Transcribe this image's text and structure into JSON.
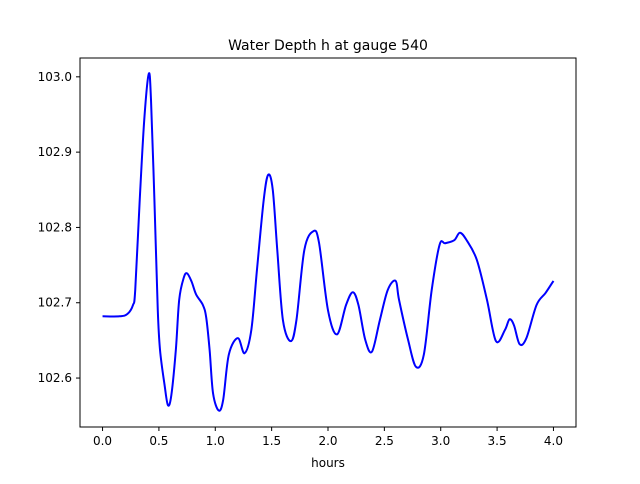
{
  "chart_data": {
    "type": "line",
    "title": "Water Depth h at gauge 540",
    "xlabel": "hours",
    "ylabel": "",
    "xlim": [
      -0.2,
      4.2
    ],
    "ylim": [
      102.535,
      103.025
    ],
    "grid": false,
    "xticks": [
      0.0,
      0.5,
      1.0,
      1.5,
      2.0,
      2.5,
      3.0,
      3.5,
      4.0
    ],
    "xtick_labels": [
      "0.0",
      "0.5",
      "1.0",
      "1.5",
      "2.0",
      "2.5",
      "3.0",
      "3.5",
      "4.0"
    ],
    "yticks": [
      102.6,
      102.7,
      102.8,
      102.9,
      103.0
    ],
    "ytick_labels": [
      "102.6",
      "102.7",
      "102.8",
      "102.9",
      "103.0"
    ],
    "series": [
      {
        "name": "h",
        "color": "#0000ff",
        "x": [
          0,
          0.15,
          0.22,
          0.27,
          0.29,
          0.33,
          0.37,
          0.41,
          0.43,
          0.46,
          0.49,
          0.51,
          0.55,
          0.58,
          0.61,
          0.65,
          0.68,
          0.72,
          0.75,
          0.79,
          0.83,
          0.89,
          0.92,
          0.95,
          0.98,
          1.03,
          1.07,
          1.12,
          1.2,
          1.26,
          1.32,
          1.37,
          1.43,
          1.47,
          1.51,
          1.55,
          1.6,
          1.67,
          1.72,
          1.79,
          1.87,
          1.92,
          2.0,
          2.08,
          2.16,
          2.22,
          2.27,
          2.33,
          2.39,
          2.46,
          2.53,
          2.6,
          2.63,
          2.71,
          2.78,
          2.85,
          2.92,
          2.99,
          3.04,
          3.12,
          3.17,
          3.23,
          3.32,
          3.41,
          3.49,
          3.57,
          3.61,
          3.65,
          3.7,
          3.76,
          3.85,
          3.93,
          4.0
        ],
        "y": [
          102.682,
          102.682,
          102.685,
          102.697,
          102.717,
          102.837,
          102.943,
          103.004,
          102.969,
          102.837,
          102.69,
          102.637,
          102.591,
          102.564,
          102.577,
          102.637,
          102.704,
          102.733,
          102.739,
          102.728,
          102.711,
          102.697,
          102.68,
          102.637,
          102.58,
          102.557,
          102.571,
          102.631,
          102.653,
          102.633,
          102.664,
          102.744,
          102.837,
          102.87,
          102.85,
          102.77,
          102.677,
          102.649,
          102.677,
          102.77,
          102.795,
          102.78,
          102.69,
          102.658,
          102.697,
          102.714,
          102.697,
          102.651,
          102.635,
          102.677,
          102.717,
          102.729,
          102.704,
          102.651,
          102.615,
          102.631,
          102.717,
          102.777,
          102.779,
          102.783,
          102.793,
          102.783,
          102.757,
          102.704,
          102.649,
          102.664,
          102.678,
          102.67,
          102.645,
          102.653,
          102.697,
          102.713,
          102.729
        ]
      }
    ]
  }
}
